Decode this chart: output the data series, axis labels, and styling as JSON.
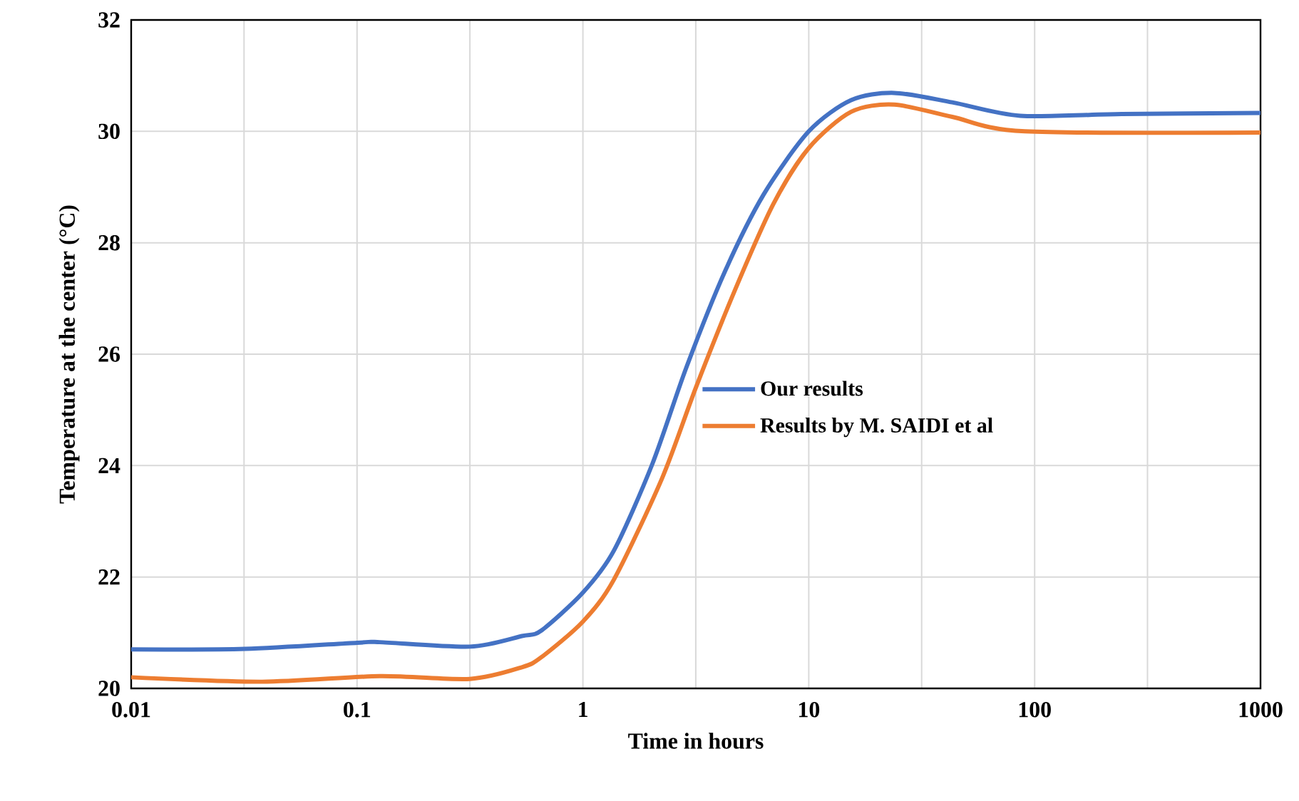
{
  "chart_data": {
    "type": "line",
    "xlabel": "Time in hours",
    "ylabel": "Temperature at the center (°C)",
    "log": "x",
    "xlim": [
      0.01,
      1000
    ],
    "ylim": [
      20,
      32
    ],
    "xticks": [
      0.01,
      {
        "value": 0.0316,
        "label": null
      },
      0.1,
      {
        "value": 0.316,
        "label": null
      },
      1,
      {
        "value": 3.16,
        "label": null
      },
      10,
      {
        "value": 31.6,
        "label": null
      },
      100,
      {
        "value": 316,
        "label": null
      },
      1000
    ],
    "yticks": [
      20,
      22,
      24,
      26,
      28,
      30,
      32
    ],
    "grid": true,
    "legend": "center",
    "line_style": "solid",
    "marker": "none",
    "series": [
      {
        "name": "Our results",
        "color": "#4472c4",
        "x": [
          0.01,
          0.032,
          0.1,
          0.126,
          0.316,
          0.537,
          0.655,
          1,
          1.37,
          2.03,
          2.87,
          4.26,
          6.32,
          10,
          15.4,
          23.9,
          43.2,
          86.3,
          243,
          1000
        ],
        "values": [
          20.7,
          20.71,
          20.82,
          20.83,
          20.75,
          20.94,
          21.04,
          21.72,
          22.47,
          24.03,
          25.76,
          27.49,
          28.87,
          30.0,
          30.56,
          30.69,
          30.52,
          30.28,
          30.31,
          30.33
        ]
      },
      {
        "name": "Results by M. SAIDI et al",
        "color": "#ed7d31",
        "x": [
          0.01,
          0.038,
          0.126,
          0.316,
          0.537,
          0.655,
          1,
          1.37,
          2.24,
          3.17,
          4.7,
          6.98,
          10,
          15.4,
          23.9,
          43.2,
          90.6,
          1000
        ],
        "values": [
          20.2,
          20.12,
          20.22,
          20.17,
          20.38,
          20.56,
          21.2,
          21.95,
          23.77,
          25.41,
          27.14,
          28.7,
          29.7,
          30.35,
          30.48,
          30.26,
          30.0,
          29.98
        ]
      }
    ]
  }
}
